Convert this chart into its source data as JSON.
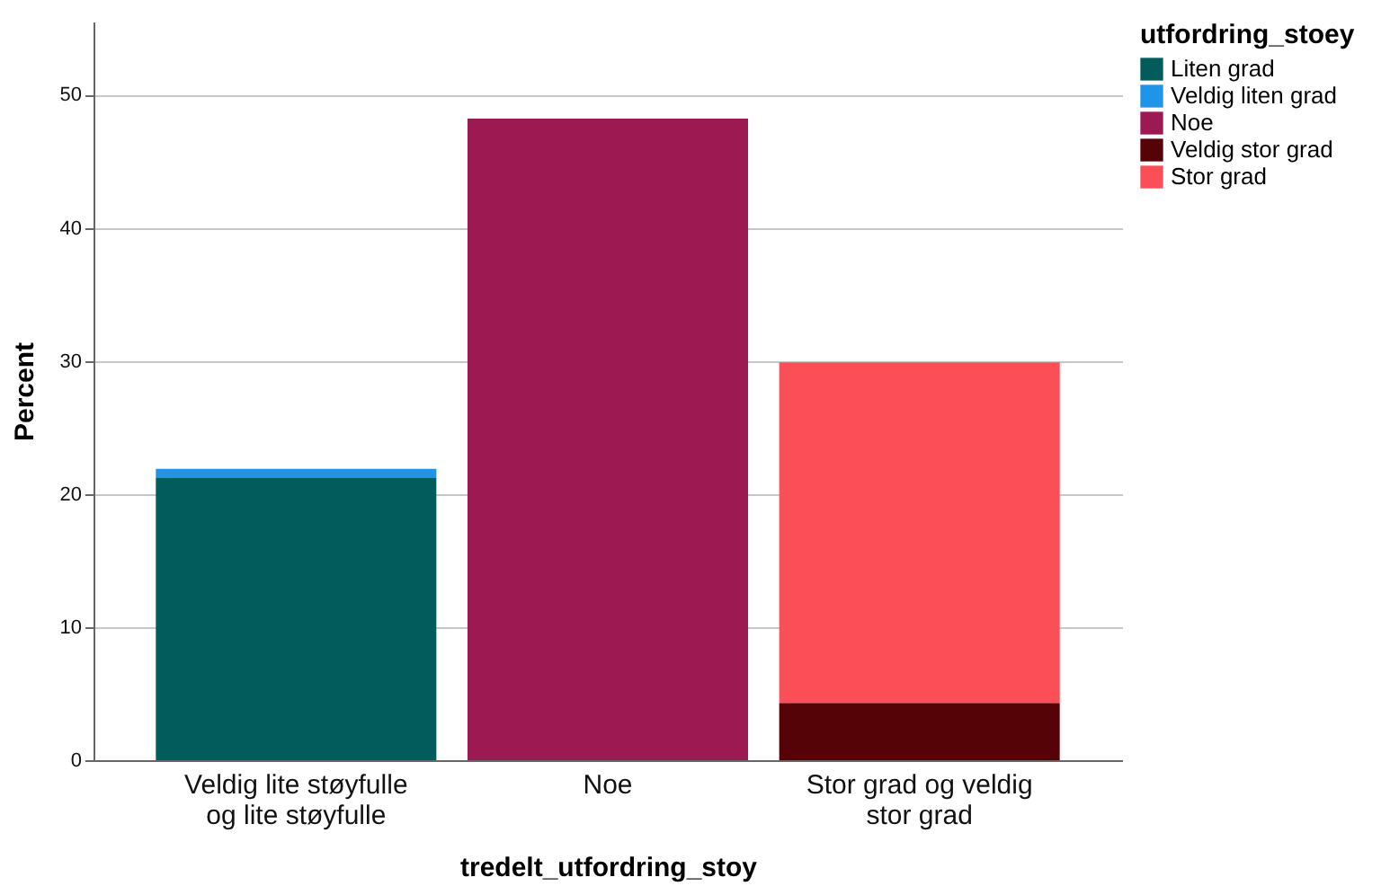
{
  "chart_data": {
    "type": "bar",
    "stacked": true,
    "xlabel": "tredelt_utfordring_stoy",
    "ylabel": "Percent",
    "legend_title": "utfordring_stoey",
    "legend": "top right",
    "grid": "y",
    "categories": [
      "Veldig lite støyfulle og lite støyfulle",
      "Noe",
      "Stor grad og veldig stor grad"
    ],
    "ylim": [
      0,
      55.5
    ],
    "yticks": [
      0,
      10,
      20,
      30,
      40,
      50
    ],
    "series": [
      {
        "name": "Liten grad",
        "color": "#025c5b",
        "values": [
          21.2,
          null,
          null
        ]
      },
      {
        "name": "Veldig liten grad",
        "color": "#1f94e8",
        "values": [
          0.7,
          null,
          null
        ]
      },
      {
        "name": "Noe",
        "color": "#9c1951",
        "values": [
          null,
          48.2,
          null
        ]
      },
      {
        "name": "Veldig stor grad",
        "color": "#560308",
        "values": [
          null,
          null,
          4.3
        ]
      },
      {
        "name": "Stor grad",
        "color": "#fa4f57",
        "values": [
          null,
          null,
          25.6
        ]
      }
    ]
  }
}
